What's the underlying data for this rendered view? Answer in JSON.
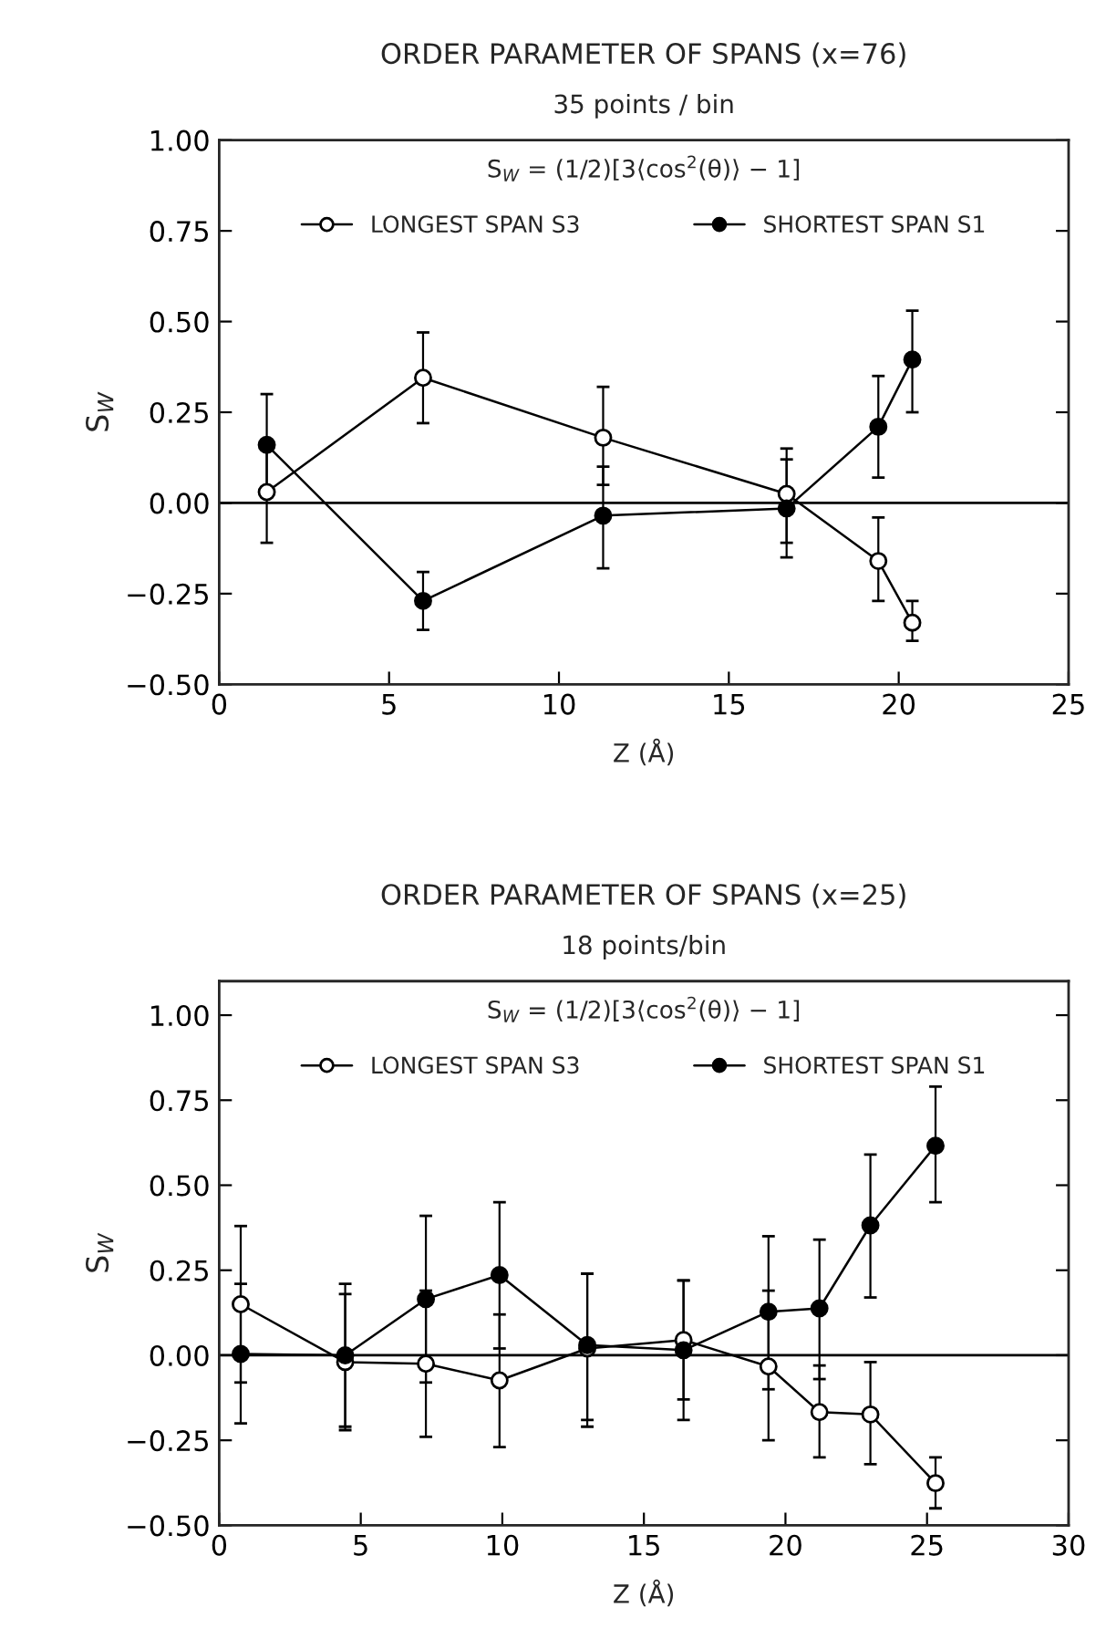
{
  "chart_data": [
    {
      "type": "line",
      "title": "ORDER PARAMETER OF SPANS (x=76)",
      "subtitle": "35 points / bin",
      "xlabel": "Z (Å)",
      "ylabel": "S$_{W}$",
      "annotations": [
        "S$_{W}$ = (1/2)[3⟨cos$^{2}$(θ)⟩ − 1]"
      ],
      "xlim": [
        0,
        25
      ],
      "xticks": [
        0,
        5,
        10,
        15,
        20,
        25
      ],
      "ylim": [
        -0.5,
        1.0
      ],
      "yticks": [
        {
          "value": -0.5,
          "label": "−0.50"
        },
        {
          "value": -0.25,
          "label": "−0.25"
        },
        {
          "value": 0,
          "label": "0.00"
        },
        {
          "value": 0.25,
          "label": "0.25"
        },
        {
          "value": 0.5,
          "label": "0.50"
        },
        {
          "value": 0.75,
          "label": "0.75"
        },
        {
          "value": 1.0,
          "label": "1.00"
        }
      ],
      "ref_lines": [
        {
          "axis": "y",
          "value": 0,
          "color": "#000000"
        }
      ],
      "legend": "top",
      "grid": false,
      "series": [
        {
          "name": "LONGEST SPAN S3",
          "color": "#000000",
          "marker": "circle",
          "x": [
            1.4,
            6.0,
            11.3,
            16.7,
            19.4,
            20.4
          ],
          "values": [
            0.03,
            0.345,
            0.18,
            0.025,
            -0.16,
            -0.33
          ],
          "errors": [
            [
              -0.11,
              0.17
            ],
            [
              0.22,
              0.47
            ],
            [
              0.05,
              0.32
            ],
            [
              -0.11,
              0.15
            ],
            [
              -0.27,
              -0.04
            ],
            [
              -0.38,
              -0.27
            ]
          ]
        },
        {
          "name": "SHORTEST SPAN S1",
          "color": "#000000",
          "marker": "circle",
          "x": [
            1.4,
            6.0,
            11.3,
            16.7,
            19.4,
            20.4
          ],
          "values": [
            0.16,
            -0.27,
            -0.035,
            -0.015,
            0.21,
            0.395
          ],
          "errors": [
            [
              0.02,
              0.3
            ],
            [
              -0.35,
              -0.19
            ],
            [
              -0.18,
              0.1
            ],
            [
              -0.15,
              0.12
            ],
            [
              0.07,
              0.35
            ],
            [
              0.25,
              0.53
            ]
          ]
        }
      ]
    },
    {
      "type": "line",
      "title": "ORDER PARAMETER OF SPANS (x=25)",
      "subtitle": "18 points/bin",
      "xlabel": "Z (Å)",
      "ylabel": "S$_{W}$",
      "annotations": [
        "S$_{W}$ = (1/2)[3⟨cos$^{2}$(θ)⟩ − 1]"
      ],
      "xlim": [
        0,
        30
      ],
      "xticks": [
        0,
        5,
        10,
        15,
        20,
        25,
        30
      ],
      "ylim": [
        -0.5,
        1.1
      ],
      "yticks": [
        {
          "value": -0.5,
          "label": "−0.50"
        },
        {
          "value": -0.25,
          "label": "−0.25"
        },
        {
          "value": 0,
          "label": "0.00"
        },
        {
          "value": 0.25,
          "label": "0.25"
        },
        {
          "value": 0.5,
          "label": "0.50"
        },
        {
          "value": 0.75,
          "label": "0.75"
        },
        {
          "value": 1.0,
          "label": "1.00"
        }
      ],
      "ref_lines": [
        {
          "axis": "y",
          "value": 0,
          "color": "#000000"
        }
      ],
      "legend": "top",
      "grid": false,
      "series": [
        {
          "name": "LONGEST SPAN S3",
          "color": "#000000",
          "marker": "circle",
          "x": [
            0.76,
            4.45,
            7.3,
            9.9,
            13.0,
            16.4,
            19.4,
            21.2,
            23.0,
            25.3
          ],
          "values": [
            0.15,
            -0.02,
            -0.025,
            -0.074,
            0.02,
            0.045,
            -0.033,
            -0.167,
            -0.174,
            -0.376
          ],
          "errors": [
            [
              -0.08,
              0.38
            ],
            [
              -0.22,
              0.18
            ],
            [
              -0.24,
              0.19
            ],
            [
              -0.27,
              0.12
            ],
            [
              -0.21,
              0.24
            ],
            [
              -0.13,
              0.22
            ],
            [
              -0.25,
              0.19
            ],
            [
              -0.3,
              -0.03
            ],
            [
              -0.32,
              -0.02
            ],
            [
              -0.45,
              -0.3
            ]
          ]
        },
        {
          "name": "SHORTEST SPAN S1",
          "color": "#000000",
          "marker": "circle",
          "x": [
            0.76,
            4.45,
            7.3,
            9.9,
            13.0,
            16.4,
            19.4,
            21.2,
            23.0,
            25.3
          ],
          "values": [
            0.004,
            0.0,
            0.165,
            0.236,
            0.03,
            0.015,
            0.128,
            0.138,
            0.382,
            0.616
          ],
          "errors": [
            [
              -0.2,
              0.21
            ],
            [
              -0.21,
              0.21
            ],
            [
              -0.08,
              0.41
            ],
            [
              0.02,
              0.45
            ],
            [
              -0.19,
              0.24
            ],
            [
              -0.19,
              0.22
            ],
            [
              -0.1,
              0.35
            ],
            [
              -0.07,
              0.34
            ],
            [
              0.17,
              0.59
            ],
            [
              0.45,
              0.79
            ]
          ]
        }
      ]
    }
  ]
}
